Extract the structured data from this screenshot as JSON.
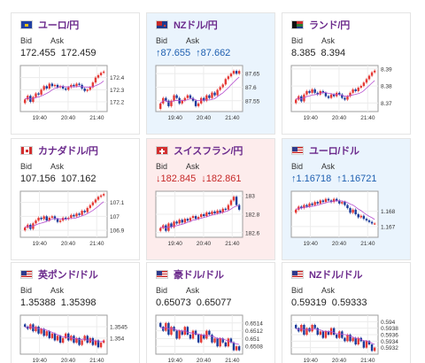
{
  "bid_label": "Bid",
  "ask_label": "Ask",
  "cards": [
    {
      "pair": "ユーロ/円",
      "bid": "172.455",
      "ask": "172.459",
      "trend": "none",
      "flag": "eu",
      "chart": {
        "yticks": [
          "172.4",
          "172.3",
          "172.2"
        ],
        "xticks": [
          "19:40",
          "20:40",
          "21:40"
        ],
        "ylim": [
          172.12,
          172.5
        ],
        "closes": [
          172.22,
          172.25,
          172.2,
          172.24,
          172.27,
          172.26,
          172.3,
          172.33,
          172.31,
          172.35,
          172.33,
          172.34,
          172.32,
          172.33,
          172.31,
          172.3,
          172.32,
          172.34,
          172.33,
          172.35,
          172.34,
          172.31,
          172.29,
          172.3,
          172.32,
          172.36,
          172.4,
          172.42,
          172.44,
          172.45
        ]
      }
    },
    {
      "pair": "NZドル/円",
      "bid": "↑87.655",
      "ask": "↑87.662",
      "trend": "up",
      "flag": "nz",
      "chart": {
        "yticks": [
          "87.65",
          "87.6",
          "87.55"
        ],
        "xticks": [
          "19:40",
          "20:40",
          "21:40"
        ],
        "ylim": [
          87.51,
          87.68
        ],
        "closes": [
          87.54,
          87.56,
          87.55,
          87.53,
          87.55,
          87.57,
          87.56,
          87.54,
          87.55,
          87.56,
          87.57,
          87.56,
          87.55,
          87.53,
          87.54,
          87.56,
          87.55,
          87.57,
          87.56,
          87.58,
          87.57,
          87.59,
          87.6,
          87.61,
          87.63,
          87.64,
          87.65,
          87.66,
          87.65,
          87.66
        ]
      }
    },
    {
      "pair": "ランド/円",
      "bid": "8.385",
      "ask": "8.394",
      "trend": "none",
      "flag": "za",
      "chart": {
        "yticks": [
          "8.39",
          "8.38",
          "8.37"
        ],
        "xticks": [
          "19:40",
          "20:40",
          "21:40"
        ],
        "ylim": [
          8.365,
          8.392
        ],
        "closes": [
          8.372,
          8.374,
          8.371,
          8.375,
          8.377,
          8.376,
          8.378,
          8.376,
          8.375,
          8.377,
          8.376,
          8.374,
          8.373,
          8.375,
          8.374,
          8.376,
          8.375,
          8.373,
          8.372,
          8.374,
          8.376,
          8.378,
          8.377,
          8.379,
          8.38,
          8.382,
          8.384,
          8.386,
          8.388,
          8.389
        ]
      }
    },
    {
      "pair": "カナダドル/円",
      "bid": "107.156",
      "ask": "107.162",
      "trend": "none",
      "flag": "ca",
      "chart": {
        "yticks": [
          "107.1",
          "107",
          "106.9"
        ],
        "xticks": [
          "19:40",
          "20:40",
          "21:40"
        ],
        "ylim": [
          106.85,
          107.18
        ],
        "closes": [
          106.92,
          106.94,
          106.91,
          106.95,
          106.97,
          106.99,
          106.98,
          107.0,
          106.97,
          106.99,
          107.0,
          106.98,
          106.96,
          106.97,
          106.99,
          106.98,
          106.99,
          107.01,
          107.0,
          107.02,
          107.01,
          107.04,
          107.03,
          107.06,
          107.08,
          107.1,
          107.12,
          107.14,
          107.15,
          107.16
        ]
      }
    },
    {
      "pair": "スイスフラン/円",
      "bid": "↓182.845",
      "ask": "↓182.861",
      "trend": "down",
      "flag": "ch",
      "chart": {
        "yticks": [
          "183",
          "182.8",
          "182.6"
        ],
        "xticks": [
          "19:40",
          "20:40",
          "21:40"
        ],
        "ylim": [
          182.55,
          183.05
        ],
        "closes": [
          182.65,
          182.68,
          182.62,
          182.7,
          182.66,
          182.72,
          182.7,
          182.74,
          182.71,
          182.75,
          182.73,
          182.76,
          182.78,
          182.75,
          182.77,
          182.8,
          182.78,
          182.82,
          182.8,
          182.83,
          182.81,
          182.84,
          182.82,
          182.86,
          182.85,
          182.9,
          182.95,
          182.99,
          182.9,
          182.85
        ]
      }
    },
    {
      "pair": "ユーロ/ドル",
      "bid": "↑1.16718",
      "ask": "↑1.16721",
      "trend": "up",
      "flag": "eu-us",
      "chart": {
        "yticks": [
          "1.168",
          "1.167"
        ],
        "xticks": [
          "19:40",
          "20:40",
          "21:40"
        ],
        "ylim": [
          1.1663,
          1.1693
        ],
        "closes": [
          1.1681,
          1.1683,
          1.1682,
          1.1684,
          1.1683,
          1.1685,
          1.1684,
          1.1686,
          1.1685,
          1.1687,
          1.1686,
          1.1688,
          1.1687,
          1.1686,
          1.1688,
          1.1687,
          1.1685,
          1.1686,
          1.1684,
          1.1682,
          1.1679,
          1.1681,
          1.1678,
          1.1676,
          1.1677,
          1.1675,
          1.1674,
          1.1673,
          1.1672,
          1.1672
        ]
      }
    },
    {
      "pair": "英ポンド/ドル",
      "bid": "1.35388",
      "ask": "1.35398",
      "trend": "none",
      "flag": "uk-us",
      "chart": {
        "yticks": [
          "1.3545",
          "1.354"
        ],
        "xticks": [
          "19:40",
          "20:40",
          "21:40"
        ],
        "ylim": [
          1.3533,
          1.355
        ],
        "closes": [
          1.3545,
          1.3544,
          1.3546,
          1.3543,
          1.3545,
          1.3542,
          1.3544,
          1.3541,
          1.3543,
          1.354,
          1.3542,
          1.3539,
          1.3541,
          1.3538,
          1.354,
          1.3542,
          1.3539,
          1.3541,
          1.3538,
          1.354,
          1.3537,
          1.3539,
          1.3541,
          1.3538,
          1.354,
          1.3537,
          1.3539,
          1.3536,
          1.3538,
          1.3539
        ]
      }
    },
    {
      "pair": "豪ドル/ドル",
      "bid": "0.65073",
      "ask": "0.65077",
      "trend": "none",
      "flag": "au-us",
      "chart": {
        "yticks": [
          "0.6514",
          "0.6512",
          "0.651",
          "0.6508"
        ],
        "xticks": [
          "19:40",
          "20:40",
          "21:40"
        ],
        "ylim": [
          0.6506,
          0.6516
        ],
        "closes": [
          0.6513,
          0.6512,
          0.6514,
          0.6511,
          0.6513,
          0.6512,
          0.651,
          0.6512,
          0.6511,
          0.6513,
          0.6511,
          0.651,
          0.6512,
          0.6511,
          0.6509,
          0.6511,
          0.651,
          0.6512,
          0.6511,
          0.6509,
          0.651,
          0.6508,
          0.651,
          0.6509,
          0.6508,
          0.651,
          0.6509,
          0.6507,
          0.6508,
          0.6507
        ]
      }
    },
    {
      "pair": "NZドル/ドル",
      "bid": "0.59319",
      "ask": "0.59333",
      "trend": "none",
      "flag": "nz-us",
      "chart": {
        "yticks": [
          "0.594",
          "0.5938",
          "0.5936",
          "0.5934",
          "0.5932"
        ],
        "xticks": [
          "19:40",
          "20:40",
          "21:40"
        ],
        "ylim": [
          0.593,
          0.5942
        ],
        "closes": [
          0.5938,
          0.5937,
          0.5939,
          0.5936,
          0.5938,
          0.5937,
          0.5939,
          0.5938,
          0.5936,
          0.5937,
          0.5935,
          0.5937,
          0.5936,
          0.5938,
          0.5936,
          0.5935,
          0.5937,
          0.5935,
          0.5934,
          0.5936,
          0.5934,
          0.5935,
          0.5933,
          0.5935,
          0.5934,
          0.5932,
          0.5934,
          0.5933,
          0.5931,
          0.5932
        ]
      }
    }
  ]
}
